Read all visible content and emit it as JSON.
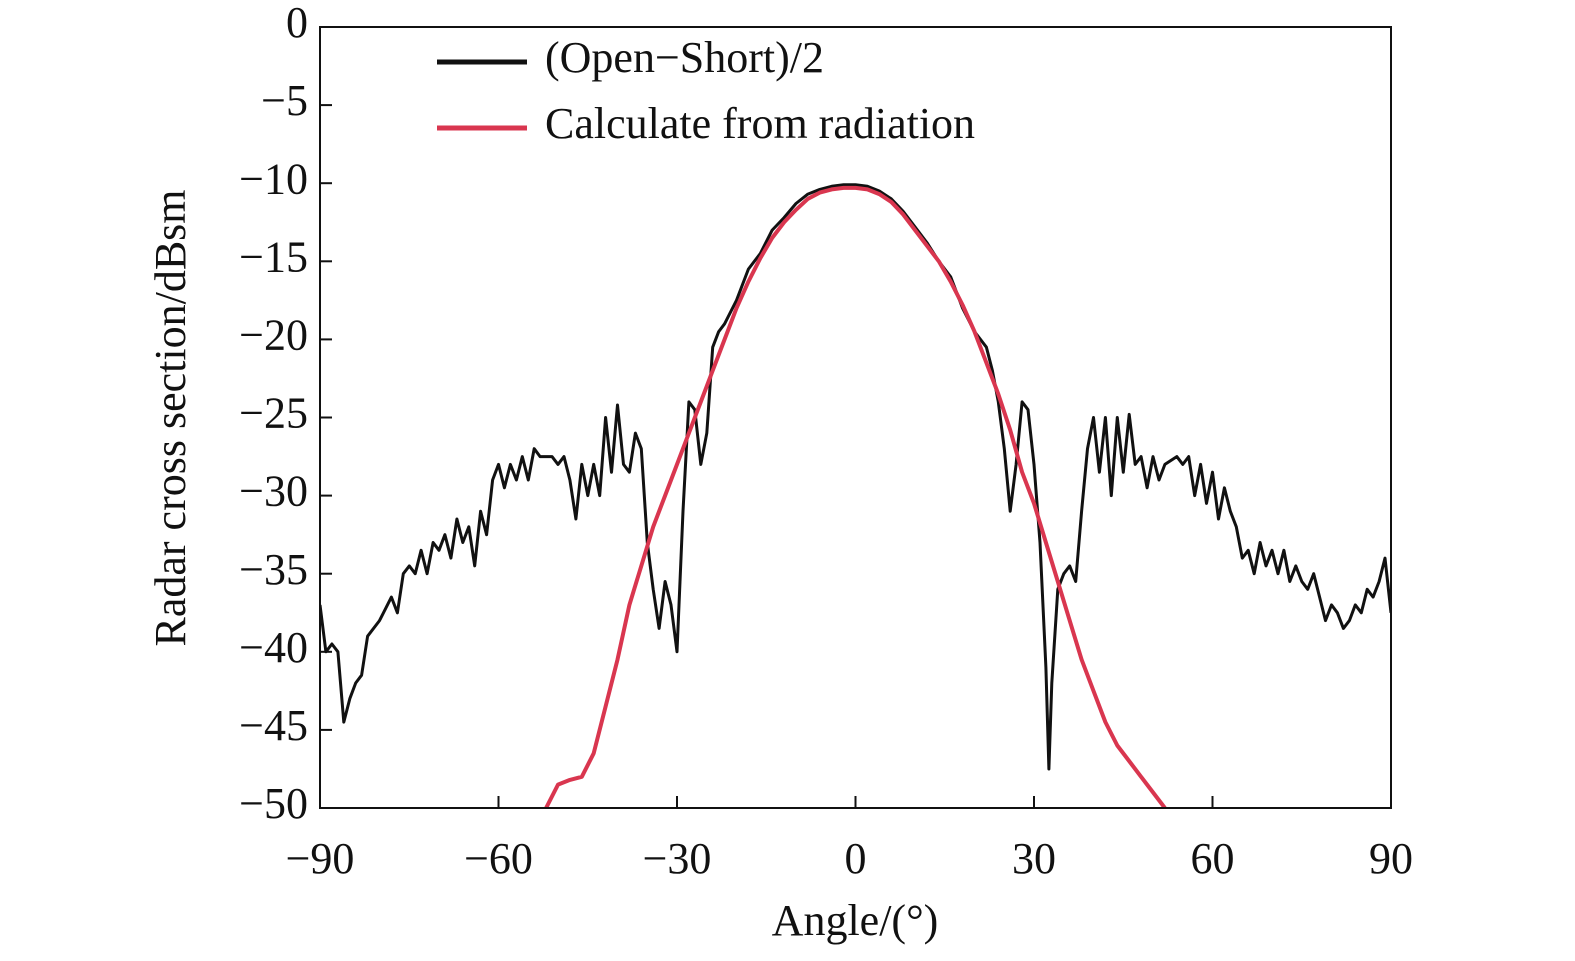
{
  "chart_data": {
    "type": "line",
    "x_label": "Angle/(°)",
    "y_label": "Radar cross section/dBsm",
    "xlim": [
      -90,
      90
    ],
    "ylim": [
      -50,
      0
    ],
    "xticks": [
      {
        "value": -90,
        "label": "−90"
      },
      {
        "value": -60,
        "label": "−60"
      },
      {
        "value": -30,
        "label": "−30"
      },
      0,
      30,
      60,
      90
    ],
    "yticks": [
      0,
      {
        "value": -5,
        "label": "−5"
      },
      {
        "value": -10,
        "label": "−10"
      },
      {
        "value": -15,
        "label": "−15"
      },
      {
        "value": -20,
        "label": "−20"
      },
      {
        "value": -25,
        "label": "−25"
      },
      {
        "value": -30,
        "label": "−30"
      },
      {
        "value": -35,
        "label": "−35"
      },
      {
        "value": -40,
        "label": "−40"
      },
      {
        "value": -45,
        "label": "−45"
      },
      {
        "value": -50,
        "label": "−50"
      }
    ],
    "legend_position": "upper left",
    "series": [
      {
        "name": "(Open−Short)/2",
        "color": "#111111",
        "x": [
          -90,
          -89,
          -88,
          -87,
          -86,
          -85,
          -84,
          -83,
          -82,
          -80,
          -78,
          -77,
          -76,
          -75,
          -74,
          -73,
          -72,
          -71,
          -70,
          -69,
          -68,
          -67,
          -66,
          -65,
          -64,
          -63,
          -62,
          -61,
          -60,
          -59,
          -58,
          -57,
          -56,
          -55,
          -54,
          -53,
          -51,
          -50,
          -49,
          -48,
          -47,
          -46,
          -45,
          -44,
          -43,
          -42,
          -41,
          -40,
          -39,
          -38,
          -37,
          -36,
          -35,
          -34,
          -33,
          -32,
          -31,
          -30,
          -29,
          -28,
          -27,
          -26,
          -25,
          -24,
          -23,
          -22,
          -20,
          -18,
          -16,
          -14,
          -12,
          -10,
          -8,
          -6,
          -4,
          -2,
          0,
          2,
          4,
          6,
          8,
          10,
          12,
          14,
          16,
          18,
          20,
          22,
          23,
          24,
          25,
          26,
          27,
          28,
          29,
          30,
          31,
          32,
          32.5,
          33,
          34,
          35,
          36,
          37,
          38,
          39,
          40,
          41,
          42,
          43,
          44,
          45,
          46,
          47,
          48,
          49,
          50,
          51,
          52,
          54,
          55,
          56,
          57,
          58,
          59,
          60,
          61,
          62,
          63,
          64,
          65,
          66,
          67,
          68,
          69,
          70,
          71,
          72,
          73,
          74,
          75,
          76,
          77,
          78,
          79,
          80,
          81,
          82,
          83,
          84,
          85,
          86,
          87,
          88,
          89,
          90
        ],
        "values": [
          -37,
          -40,
          -39.5,
          -40,
          -44.5,
          -43,
          -42,
          -41.5,
          -39,
          -38,
          -36.5,
          -37.5,
          -35,
          -34.5,
          -35,
          -33.5,
          -35,
          -33,
          -33.5,
          -32.5,
          -34,
          -31.5,
          -33,
          -32,
          -34.5,
          -31,
          -32.5,
          -29,
          -28,
          -29.5,
          -28,
          -29,
          -27.5,
          -29,
          -27,
          -27.5,
          -27.5,
          -28,
          -27.5,
          -29,
          -31.5,
          -28,
          -30,
          -28,
          -30,
          -25,
          -28.5,
          -24.2,
          -28,
          -28.5,
          -26,
          -27,
          -33,
          -36,
          -38.5,
          -35.5,
          -37,
          -40,
          -31,
          -24,
          -24.5,
          -28,
          -26,
          -20.5,
          -19.5,
          -19,
          -17.5,
          -15.5,
          -14.5,
          -13,
          -12.2,
          -11.3,
          -10.7,
          -10.4,
          -10.2,
          -10.1,
          -10.1,
          -10.2,
          -10.5,
          -11,
          -11.8,
          -12.8,
          -13.8,
          -15,
          -16,
          -18,
          -19.5,
          -20.5,
          -22,
          -24,
          -27,
          -31,
          -28,
          -24,
          -24.5,
          -28,
          -33,
          -41,
          -47.5,
          -42,
          -36,
          -35,
          -34.5,
          -35.5,
          -31,
          -27,
          -25,
          -28.5,
          -25,
          -30,
          -25,
          -28.5,
          -24.8,
          -28,
          -27.5,
          -29.5,
          -27.5,
          -29,
          -28,
          -27.5,
          -28,
          -27.5,
          -30,
          -28,
          -30.5,
          -28.5,
          -31.5,
          -29.5,
          -31,
          -32,
          -34,
          -33.5,
          -35,
          -33,
          -34.5,
          -33.5,
          -35,
          -33.5,
          -35.5,
          -34.5,
          -35.5,
          -36,
          -35,
          -36.5,
          -38,
          -37,
          -37.5,
          -38.5,
          -38,
          -37,
          -37.5,
          -36,
          -36.5,
          -35.5,
          -34,
          -37.5
        ]
      },
      {
        "name": "Calculate from radiation",
        "color": "#d9364f",
        "x": [
          -52,
          -50,
          -48,
          -46,
          -44,
          -42,
          -40,
          -38,
          -36,
          -34,
          -32,
          -30,
          -28,
          -26,
          -24,
          -22,
          -20,
          -18,
          -16,
          -14,
          -12,
          -10,
          -8,
          -6,
          -4,
          -2,
          0,
          2,
          4,
          6,
          8,
          10,
          12,
          14,
          16,
          18,
          20,
          22,
          24,
          26,
          28,
          30,
          32,
          34,
          36,
          38,
          40,
          42,
          44,
          46,
          48,
          50,
          52
        ],
        "values": [
          -50,
          -48.5,
          -48.2,
          -48,
          -46.5,
          -43.5,
          -40.5,
          -37,
          -34.5,
          -32,
          -30,
          -28,
          -26,
          -24,
          -22,
          -20,
          -18,
          -16.3,
          -14.8,
          -13.5,
          -12.5,
          -11.7,
          -11,
          -10.6,
          -10.4,
          -10.3,
          -10.3,
          -10.4,
          -10.7,
          -11.2,
          -12,
          -13,
          -14,
          -15,
          -16.3,
          -17.8,
          -19.5,
          -21.5,
          -23.5,
          -25.8,
          -28.5,
          -30.5,
          -33,
          -35.5,
          -38,
          -40.5,
          -42.5,
          -44.5,
          -46,
          -47,
          -48,
          -49,
          -50
        ]
      }
    ]
  }
}
